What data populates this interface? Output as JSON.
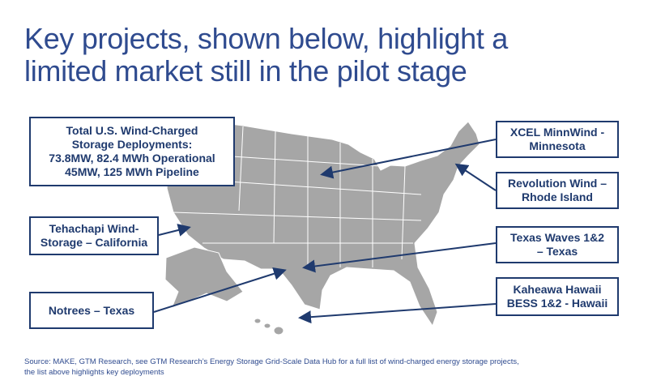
{
  "title_lines": [
    "Key projects, shown below, highlight a",
    "limited market still in the pilot stage"
  ],
  "callouts": [
    {
      "lines": [
        "Total U.S. Wind-Charged",
        "Storage Deployments:",
        "73.8MW, 82.4 MWh Operational",
        "45MW, 125 MWh Pipeline"
      ]
    },
    {
      "lines": [
        "Tehachapi Wind-",
        "Storage – California"
      ]
    },
    {
      "lines": [
        "Notrees – Texas"
      ]
    },
    {
      "lines": [
        "XCEL MinnWind -",
        "Minnesota"
      ]
    },
    {
      "lines": [
        "Revolution Wind –",
        "Rhode Island"
      ]
    },
    {
      "lines": [
        "Texas Waves 1&2",
        "– Texas"
      ]
    },
    {
      "lines": [
        "Kaheawa Hawaii",
        "BESS 1&2 - Hawaii"
      ]
    }
  ],
  "source_lines": [
    "Source: MAKE, GTM Research, see GTM Research’s Energy Storage Grid-Scale Data Hub for a full list of wind-charged  energy storage projects,",
    "the list above highlights key deployments"
  ]
}
